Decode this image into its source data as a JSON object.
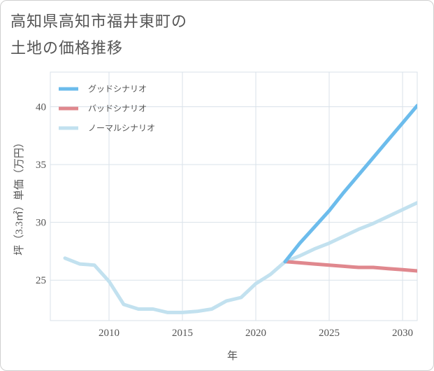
{
  "title_lines": [
    "高知県高知市福井東町の",
    "土地の価格推移"
  ],
  "chart_data": {
    "type": "line",
    "title": "高知県高知市福井東町の土地の価格推移",
    "xlabel": "年",
    "ylabel": "坪（3.3㎡）単価（万円）",
    "xlim": [
      2006,
      2031
    ],
    "ylim": [
      21.5,
      43
    ],
    "xticks": [
      2010,
      2015,
      2020,
      2025,
      2030
    ],
    "yticks": [
      25,
      30,
      35,
      40
    ],
    "grid": true,
    "legend_position": "top-left",
    "series": [
      {
        "name": "グッドシナリオ",
        "color": "#6cbcec",
        "x": [
          2022,
          2023,
          2024,
          2025,
          2026,
          2027,
          2028,
          2029,
          2030,
          2031
        ],
        "values": [
          26.6,
          28.2,
          29.6,
          31.0,
          32.6,
          34.1,
          35.6,
          37.1,
          38.6,
          40.1
        ]
      },
      {
        "name": "バッドシナリオ",
        "color": "#e0888e",
        "x": [
          2022,
          2023,
          2024,
          2025,
          2026,
          2027,
          2028,
          2029,
          2030,
          2031
        ],
        "values": [
          26.6,
          26.5,
          26.4,
          26.3,
          26.2,
          26.1,
          26.1,
          26.0,
          25.9,
          25.8
        ]
      },
      {
        "name": "ノーマルシナリオ",
        "color": "#c2e1ef",
        "x": [
          2007,
          2008,
          2009,
          2010,
          2011,
          2012,
          2013,
          2014,
          2015,
          2016,
          2017,
          2018,
          2019,
          2020,
          2021,
          2022,
          2023,
          2024,
          2025,
          2026,
          2027,
          2028,
          2029,
          2030,
          2031
        ],
        "values": [
          26.9,
          26.4,
          26.3,
          24.9,
          22.9,
          22.5,
          22.5,
          22.2,
          22.2,
          22.3,
          22.5,
          23.2,
          23.5,
          24.7,
          25.5,
          26.6,
          27.1,
          27.7,
          28.2,
          28.8,
          29.4,
          29.9,
          30.5,
          31.1,
          31.7
        ]
      }
    ]
  }
}
